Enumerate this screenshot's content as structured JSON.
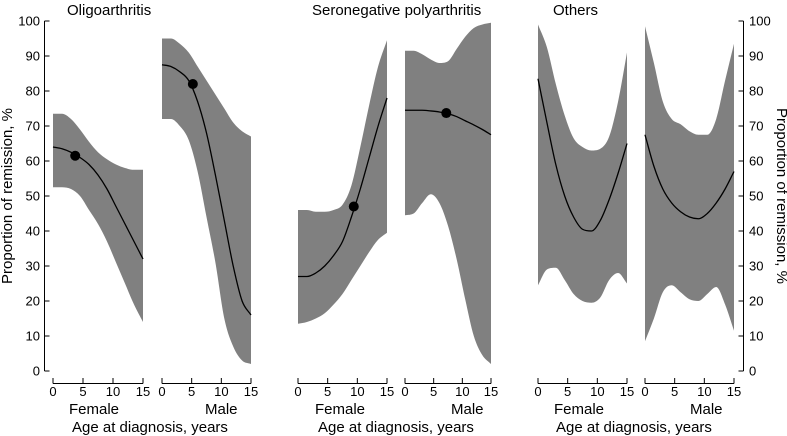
{
  "chart_data": {
    "type": "area",
    "title": "",
    "ylabel": "Proportion of remission, %",
    "ylim": [
      0,
      100
    ],
    "yticks": [
      0,
      10,
      20,
      30,
      40,
      50,
      60,
      70,
      80,
      90,
      100
    ],
    "xlim": [
      0,
      15
    ],
    "xticks": [
      0,
      5,
      10,
      15
    ],
    "groups": [
      {
        "title": "Oligoarthritis",
        "xlabel": "Age at diagnosis, years",
        "panels": [
          {
            "sex": "Female",
            "x": [
              0,
              1.5,
              3,
              4.5,
              6,
              7.5,
              9,
              10.5,
              12,
              13.5,
              15
            ],
            "lower": [
              52.5,
              52.5,
              52,
              50,
              46,
              42,
              37,
              31,
              25,
              19,
              14
            ],
            "fit": [
              64,
              63.5,
              62.5,
              61,
              59,
              56,
              52,
              47,
              42,
              37,
              32
            ],
            "upper": [
              73.5,
              73.5,
              72,
              69,
              65.5,
              62.5,
              60.5,
              59,
              58,
              57.5,
              57.5
            ],
            "point": [
              3.7,
              61.5
            ]
          },
          {
            "sex": "Male",
            "x": [
              0,
              1.5,
              3,
              4.5,
              6,
              7.5,
              9,
              10.5,
              12,
              13.5,
              15
            ],
            "lower": [
              72,
              72,
              70,
              66,
              57,
              44,
              31,
              15,
              7,
              3,
              2
            ],
            "fit": [
              87.5,
              87,
              85.5,
              83,
              77,
              68,
              56,
              43,
              30,
              20,
              16
            ],
            "upper": [
              95,
              95,
              93.5,
              91,
              87,
              83,
              79,
              75,
              71,
              68.5,
              67
            ],
            "point": [
              5.2,
              82
            ]
          }
        ]
      },
      {
        "title": "Seronegative polyarthritis",
        "xlabel": "Age at diagnosis, years",
        "panels": [
          {
            "sex": "Female",
            "x": [
              0,
              1.5,
              3,
              4.5,
              6,
              7.5,
              9,
              10.5,
              12,
              13.5,
              15
            ],
            "lower": [
              13.5,
              14,
              15,
              16.5,
              19,
              22,
              26,
              30,
              34,
              37.5,
              39.5
            ],
            "fit": [
              27,
              27,
              28,
              30,
              33,
              37,
              44,
              52,
              61,
              70,
              78
            ],
            "upper": [
              46,
              46,
              45.5,
              45.5,
              46,
              47.5,
              53,
              64,
              76,
              87,
              94.5
            ],
            "point": [
              9.4,
              47
            ]
          },
          {
            "sex": "Male",
            "x": [
              0,
              1.5,
              3,
              4.5,
              6,
              7.5,
              9,
              10.5,
              12,
              13.5,
              15
            ],
            "lower": [
              44.5,
              45,
              48,
              50.5,
              48,
              41.5,
              32,
              20.5,
              10,
              4.5,
              2
            ],
            "fit": [
              74.5,
              74.5,
              74.5,
              74.3,
              74,
              73.5,
              72.7,
              71.5,
              70.3,
              69,
              67.5
            ],
            "upper": [
              91.5,
              91.5,
              90.5,
              89,
              88,
              88.5,
              92,
              95.5,
              98,
              99,
              99.5
            ],
            "point": [
              7.2,
              73.7
            ]
          }
        ]
      },
      {
        "title": "Others",
        "xlabel": "Age at diagnosis, years",
        "panels": [
          {
            "sex": "Female",
            "x": [
              0,
              1.5,
              3,
              4.5,
              6,
              7.5,
              9,
              10.5,
              12,
              13.5,
              15
            ],
            "lower": [
              24.5,
              29,
              29.5,
              26,
              22,
              20,
              19.5,
              21,
              26,
              28,
              25
            ],
            "fit": [
              83.5,
              71,
              59,
              50,
              44,
              40.5,
              40,
              43,
              49,
              56.5,
              65
            ],
            "upper": [
              99,
              92.5,
              82,
              73,
              66.5,
              64,
              63,
              63.5,
              67,
              77,
              91
            ],
            "point": null
          },
          {
            "sex": "Male",
            "x": [
              0,
              1.5,
              3,
              4.5,
              6,
              7.5,
              9,
              10.5,
              12,
              13.5,
              15
            ],
            "lower": [
              8.5,
              15,
              22.5,
              24.5,
              22.5,
              20.5,
              20,
              22,
              24,
              19,
              11.5
            ],
            "fit": [
              67.5,
              58.5,
              52,
              48,
              45.5,
              44,
              43.5,
              45,
              48,
              52,
              57
            ],
            "upper": [
              98.5,
              88,
              77,
              72,
              70.5,
              68.5,
              67.5,
              67.5,
              72,
              83,
              93.5
            ],
            "point": null
          }
        ]
      }
    ]
  }
}
